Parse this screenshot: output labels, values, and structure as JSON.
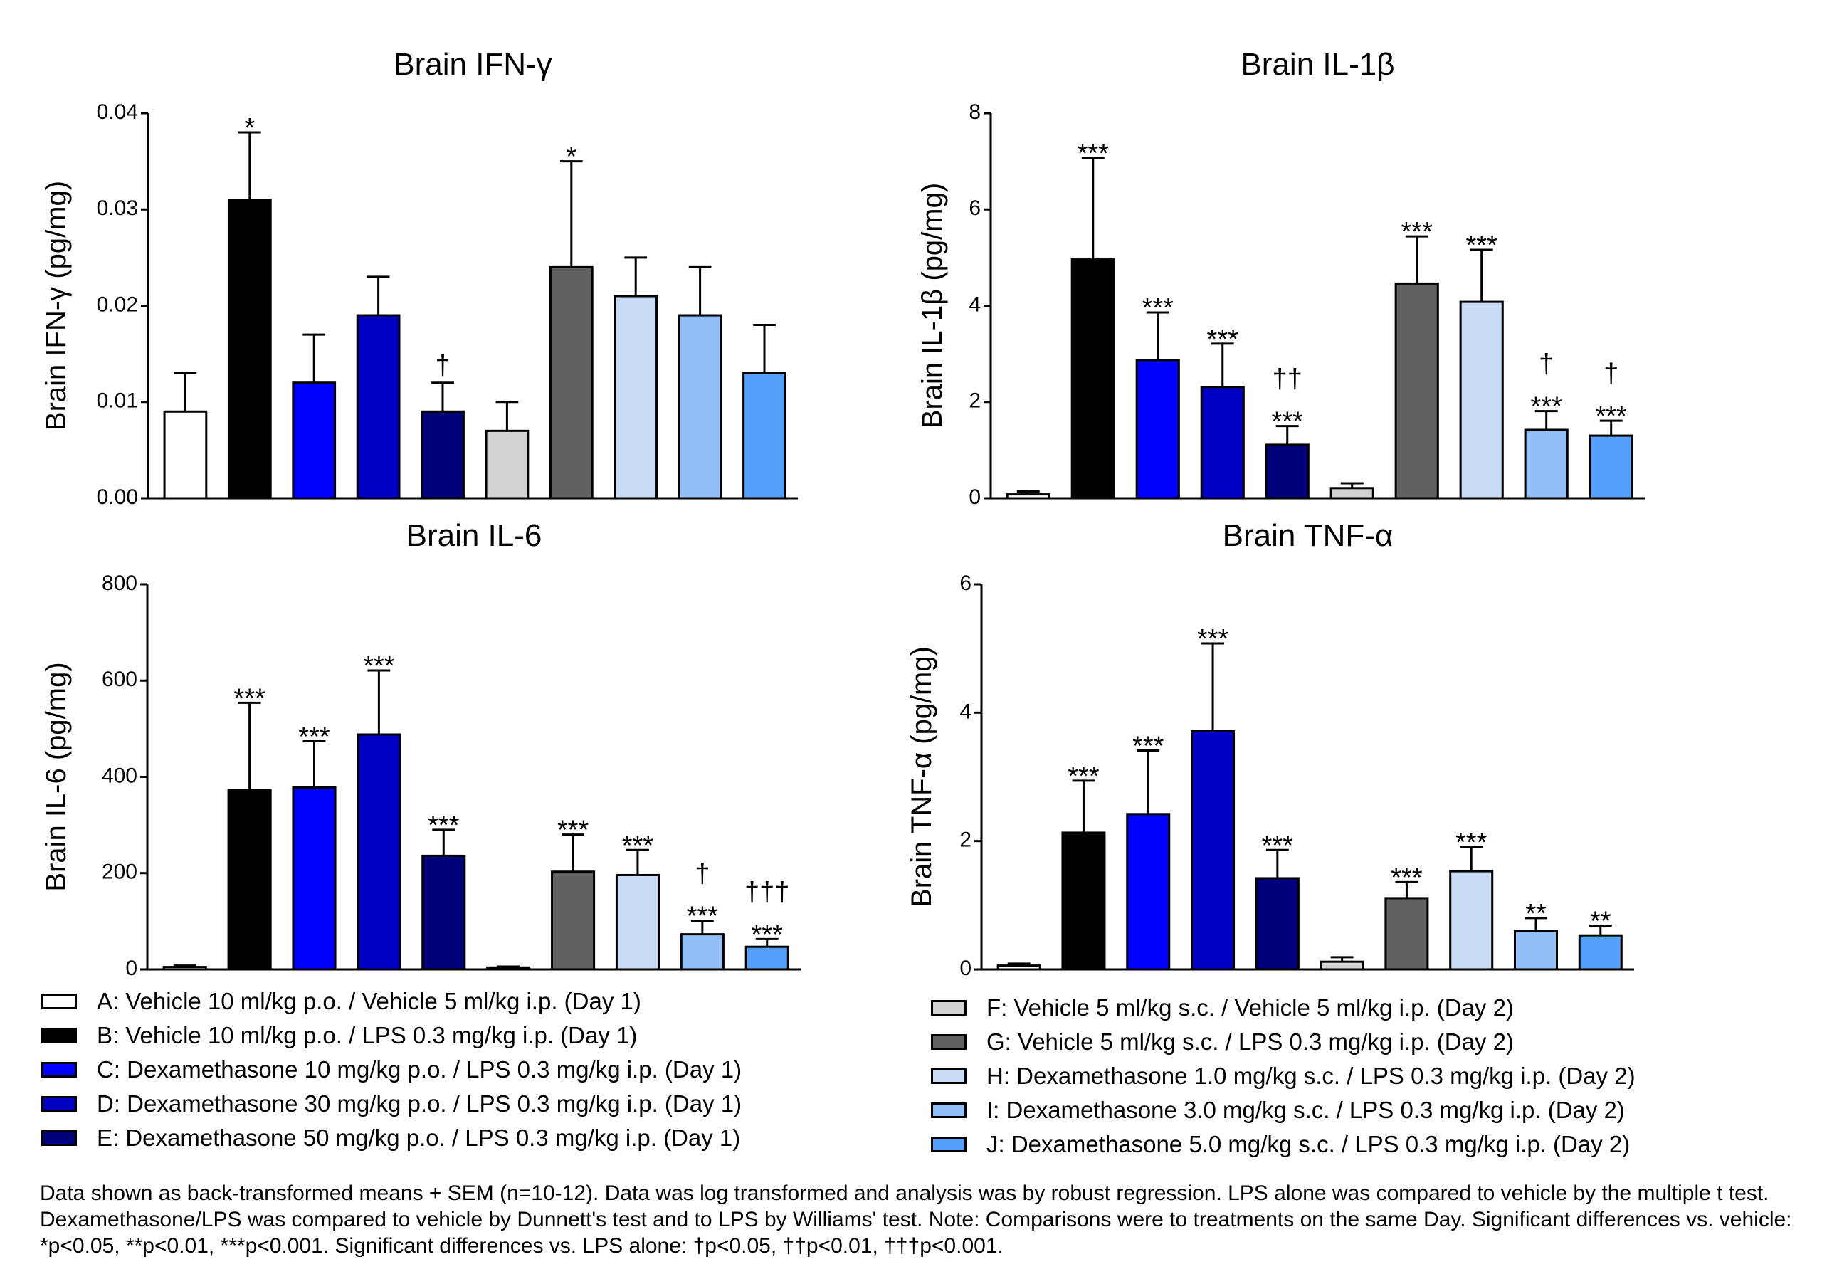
{
  "groups": [
    {
      "key": "A",
      "label": "A: Vehicle 10 ml/kg p.o. / Vehicle 5 ml/kg i.p. (Day 1)",
      "color": "#FFFFFF"
    },
    {
      "key": "B",
      "label": "B: Vehicle 10 ml/kg p.o. / LPS 0.3 mg/kg i.p. (Day 1)",
      "color": "#000000"
    },
    {
      "key": "C",
      "label": "C: Dexamethasone 10 mg/kg p.o. / LPS 0.3 mg/kg i.p. (Day 1)",
      "color": "#0000FF"
    },
    {
      "key": "D",
      "label": "D: Dexamethasone 30 mg/kg p.o. / LPS 0.3 mg/kg i.p. (Day 1)",
      "color": "#0000C4"
    },
    {
      "key": "E",
      "label": "E: Dexamethasone 50 mg/kg p.o. / LPS 0.3 mg/kg i.p. (Day 1)",
      "color": "#00007A"
    },
    {
      "key": "F",
      "label": "F: Vehicle 5 ml/kg s.c. / Vehicle 5 ml/kg i.p. (Day 2)",
      "color": "#D3D3D3"
    },
    {
      "key": "G",
      "label": "G: Vehicle 5 ml/kg s.c. / LPS 0.3 mg/kg i.p. (Day 2)",
      "color": "#616161"
    },
    {
      "key": "H",
      "label": "H: Dexamethasone 1.0 mg/kg s.c. / LPS 0.3 mg/kg i.p. (Day 2)",
      "color": "#C8DCF5"
    },
    {
      "key": "I",
      "label": "I: Dexamethasone 3.0 mg/kg s.c. / LPS 0.3 mg/kg i.p. (Day 2)",
      "color": "#92BFF8"
    },
    {
      "key": "J",
      "label": "J: Dexamethasone 5.0 mg/kg s.c. / LPS 0.3 mg/kg i.p. (Day 2)",
      "color": "#55A0FA"
    }
  ],
  "chart_data": [
    {
      "type": "bar",
      "title": "Brain IFN-γ",
      "xlabel": "",
      "ylabel": "Brain IFN-γ (pg/mg)",
      "ylim": [
        0,
        0.04
      ],
      "yticks": [
        "0.00",
        "0.01",
        "0.02",
        "0.03",
        "0.04"
      ],
      "ytick_values": [
        0,
        0.01,
        0.02,
        0.03,
        0.04
      ],
      "categories": [
        "A",
        "B",
        "C",
        "D",
        "E",
        "F",
        "G",
        "H",
        "I",
        "J"
      ],
      "values": [
        0.009,
        0.031,
        0.012,
        0.019,
        0.009,
        0.007,
        0.024,
        0.021,
        0.019,
        0.013
      ],
      "error_upper": [
        0.013,
        0.038,
        0.017,
        0.023,
        0.012,
        0.01,
        0.035,
        0.025,
        0.024,
        0.018
      ],
      "annotations": [
        [],
        [
          "*"
        ],
        [],
        [],
        [
          "†"
        ],
        [],
        [
          "*"
        ],
        [],
        [],
        []
      ],
      "grid": false,
      "legend": "bottom"
    },
    {
      "type": "bar",
      "title": "Brain IL-1β",
      "xlabel": "",
      "ylabel": "Brain IL-1β (pg/mg)",
      "ylim": [
        0,
        8
      ],
      "yticks": [
        "0",
        "2",
        "4",
        "6",
        "8"
      ],
      "ytick_values": [
        0,
        2,
        4,
        6,
        8
      ],
      "categories": [
        "A",
        "B",
        "C",
        "D",
        "E",
        "F",
        "G",
        "H",
        "I",
        "J"
      ],
      "values": [
        0.08,
        4.96,
        2.87,
        2.31,
        1.11,
        0.21,
        4.46,
        4.08,
        1.42,
        1.3
      ],
      "error_upper": [
        0.14,
        7.07,
        3.86,
        3.21,
        1.5,
        0.31,
        5.44,
        5.16,
        1.81,
        1.61
      ],
      "annotations": [
        [],
        [
          "***"
        ],
        [
          "***"
        ],
        [
          "***"
        ],
        [
          "***",
          "††"
        ],
        [],
        [
          "***"
        ],
        [
          "***"
        ],
        [
          "***",
          "†"
        ],
        [
          "***",
          "†"
        ]
      ],
      "grid": false,
      "legend": "bottom"
    },
    {
      "type": "bar",
      "title": "Brain IL-6",
      "xlabel": "",
      "ylabel": "Brain IL-6 (pg/mg)",
      "ylim": [
        0,
        800
      ],
      "yticks": [
        "0",
        "200",
        "400",
        "600",
        "800"
      ],
      "ytick_values": [
        0,
        200,
        400,
        600,
        800
      ],
      "categories": [
        "A",
        "B",
        "C",
        "D",
        "E",
        "F",
        "G",
        "H",
        "I",
        "J"
      ],
      "values": [
        5,
        372,
        378,
        488,
        236,
        4,
        203,
        196,
        73,
        47
      ],
      "error_upper": [
        8,
        554,
        474,
        621,
        290,
        6,
        280,
        248,
        101,
        63
      ],
      "annotations": [
        [],
        [
          "***"
        ],
        [
          "***"
        ],
        [
          "***"
        ],
        [
          "***"
        ],
        [],
        [
          "***"
        ],
        [
          "***"
        ],
        [
          "***",
          "†"
        ],
        [
          "***",
          "†††"
        ]
      ],
      "grid": false,
      "legend": "bottom"
    },
    {
      "type": "bar",
      "title": "Brain TNF-α",
      "xlabel": "",
      "ylabel": "Brain TNF-α (pg/mg)",
      "ylim": [
        0,
        6
      ],
      "yticks": [
        "0",
        "2",
        "4",
        "6"
      ],
      "ytick_values": [
        0,
        2,
        4,
        6
      ],
      "categories": [
        "A",
        "B",
        "C",
        "D",
        "E",
        "F",
        "G",
        "H",
        "I",
        "J"
      ],
      "values": [
        0.06,
        2.13,
        2.42,
        3.71,
        1.42,
        0.12,
        1.11,
        1.53,
        0.6,
        0.53
      ],
      "error_upper": [
        0.09,
        2.94,
        3.41,
        5.08,
        1.86,
        0.19,
        1.36,
        1.91,
        0.8,
        0.68
      ],
      "annotations": [
        [],
        [
          "***"
        ],
        [
          "***"
        ],
        [
          "***"
        ],
        [
          "***"
        ],
        [],
        [
          "***"
        ],
        [
          "***"
        ],
        [
          "**"
        ],
        [
          "**"
        ]
      ],
      "grid": false,
      "legend": "bottom"
    }
  ],
  "footnote": "Data shown as back-transformed means + SEM (n=10-12). Data was log transformed and analysis was by robust regression. LPS alone was  compared to vehicle by the multiple t test. Dexamethasone/LPS was compared to vehicle by Dunnett's test and to LPS by Williams' test. Note: Comparisons were to treatments on the same Day. Significant differences vs. vehicle: *p<0.05, **p<0.01, ***p<0.001. Significant differences vs. LPS alone: †p<0.05, ††p<0.01, †††p<0.001."
}
